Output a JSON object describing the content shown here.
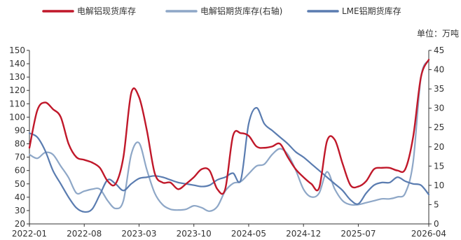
{
  "chart_data": {
    "type": "line",
    "unit": "单位：万吨",
    "legend_placement": "top",
    "grid": false,
    "x_ticks": [
      "2022-01",
      "2022-08",
      "2023-03",
      "2023-10",
      "2024-05",
      "2024-12",
      "2025-07",
      "2026-04"
    ],
    "x_range": [
      "2022-01",
      "2026-04"
    ],
    "y_left": {
      "range": [
        20,
        150
      ],
      "ticks": [
        20,
        30,
        40,
        50,
        60,
        70,
        80,
        90,
        100,
        110,
        120,
        130,
        140,
        150
      ]
    },
    "y_right": {
      "range": [
        0,
        45
      ],
      "ticks": [
        0,
        5,
        10,
        15,
        20,
        25,
        30,
        35,
        40,
        45
      ]
    },
    "series": [
      {
        "name": "电解铝现货库存",
        "color": "#c0182a",
        "axis": "left",
        "points": [
          [
            "2022-01",
            77
          ],
          [
            "2022-02",
            105
          ],
          [
            "2022-03",
            111
          ],
          [
            "2022-04",
            106
          ],
          [
            "2022-05",
            100
          ],
          [
            "2022-06",
            80
          ],
          [
            "2022-07",
            70
          ],
          [
            "2022-08",
            68
          ],
          [
            "2022-09",
            66
          ],
          [
            "2022-10",
            62
          ],
          [
            "2022-11",
            52
          ],
          [
            "2022-12",
            50
          ],
          [
            "2023-01",
            70
          ],
          [
            "2023-02",
            118
          ],
          [
            "2023-03",
            115
          ],
          [
            "2023-04",
            90
          ],
          [
            "2023-05",
            58
          ],
          [
            "2023-06",
            51
          ],
          [
            "2023-07",
            51
          ],
          [
            "2023-08",
            46
          ],
          [
            "2023-09",
            50
          ],
          [
            "2023-10",
            55
          ],
          [
            "2023-11",
            61
          ],
          [
            "2023-12",
            60
          ],
          [
            "2024-01",
            46
          ],
          [
            "2024-02",
            46
          ],
          [
            "2024-03",
            86
          ],
          [
            "2024-04",
            88
          ],
          [
            "2024-05",
            86
          ],
          [
            "2024-06",
            78
          ],
          [
            "2024-07",
            77
          ],
          [
            "2024-08",
            78
          ],
          [
            "2024-09",
            80
          ],
          [
            "2024-10",
            70
          ],
          [
            "2024-11",
            61
          ],
          [
            "2024-12",
            55
          ],
          [
            "2025-01",
            50
          ],
          [
            "2025-02",
            47
          ],
          [
            "2025-03",
            82
          ],
          [
            "2025-04",
            83
          ],
          [
            "2025-05",
            65
          ],
          [
            "2025-06",
            49
          ],
          [
            "2025-07",
            48
          ],
          [
            "2025-08",
            52
          ],
          [
            "2025-09",
            61
          ],
          [
            "2025-10",
            62
          ],
          [
            "2025-11",
            62
          ],
          [
            "2025-12",
            60
          ],
          [
            "2026-01",
            61
          ],
          [
            "2026-02",
            85
          ],
          [
            "2026-03",
            130
          ],
          [
            "2026-04",
            143
          ]
        ]
      },
      {
        "name": "电解铝期货库存(右轴)",
        "color": "#8ea7c7",
        "axis": "right",
        "points": [
          [
            "2022-01",
            18
          ],
          [
            "2022-02",
            17
          ],
          [
            "2022-03",
            18.5
          ],
          [
            "2022-04",
            18
          ],
          [
            "2022-05",
            15
          ],
          [
            "2022-06",
            12
          ],
          [
            "2022-07",
            8
          ],
          [
            "2022-08",
            8.5
          ],
          [
            "2022-09",
            9
          ],
          [
            "2022-10",
            9
          ],
          [
            "2022-11",
            6
          ],
          [
            "2022-12",
            4
          ],
          [
            "2023-01",
            6
          ],
          [
            "2023-02",
            18
          ],
          [
            "2023-03",
            21
          ],
          [
            "2023-04",
            14
          ],
          [
            "2023-05",
            8
          ],
          [
            "2023-06",
            5
          ],
          [
            "2023-07",
            3.8
          ],
          [
            "2023-08",
            3.6
          ],
          [
            "2023-09",
            3.8
          ],
          [
            "2023-10",
            4.7
          ],
          [
            "2023-11",
            4.2
          ],
          [
            "2023-12",
            3.3
          ],
          [
            "2024-01",
            4.5
          ],
          [
            "2024-02",
            8.5
          ],
          [
            "2024-03",
            10.5
          ],
          [
            "2024-04",
            11
          ],
          [
            "2024-05",
            13
          ],
          [
            "2024-06",
            15
          ],
          [
            "2024-07",
            15.5
          ],
          [
            "2024-08",
            18
          ],
          [
            "2024-09",
            19.5
          ],
          [
            "2024-10",
            18
          ],
          [
            "2024-11",
            14
          ],
          [
            "2024-12",
            9
          ],
          [
            "2025-01",
            7
          ],
          [
            "2025-02",
            8
          ],
          [
            "2025-03",
            13.5
          ],
          [
            "2025-04",
            9
          ],
          [
            "2025-05",
            6
          ],
          [
            "2025-06",
            5
          ],
          [
            "2025-07",
            5
          ],
          [
            "2025-08",
            5.5
          ],
          [
            "2025-09",
            6
          ],
          [
            "2025-10",
            6.5
          ],
          [
            "2025-11",
            6.5
          ],
          [
            "2025-12",
            7
          ],
          [
            "2026-01",
            8
          ],
          [
            "2026-02",
            16
          ],
          [
            "2026-03",
            38
          ],
          [
            "2026-04",
            42.5
          ]
        ]
      },
      {
        "name": "LME铝期货库存",
        "color": "#5a7cb0",
        "axis": "left",
        "points": [
          [
            "2022-01",
            88
          ],
          [
            "2022-02",
            85
          ],
          [
            "2022-03",
            75
          ],
          [
            "2022-04",
            60
          ],
          [
            "2022-05",
            50
          ],
          [
            "2022-06",
            40
          ],
          [
            "2022-07",
            32
          ],
          [
            "2022-08",
            29
          ],
          [
            "2022-09",
            31
          ],
          [
            "2022-10",
            42
          ],
          [
            "2022-11",
            53
          ],
          [
            "2022-12",
            50
          ],
          [
            "2023-01",
            45
          ],
          [
            "2023-02",
            50
          ],
          [
            "2023-03",
            54
          ],
          [
            "2023-04",
            55
          ],
          [
            "2023-05",
            56
          ],
          [
            "2023-06",
            55
          ],
          [
            "2023-07",
            53
          ],
          [
            "2023-08",
            51
          ],
          [
            "2023-09",
            50
          ],
          [
            "2023-10",
            49
          ],
          [
            "2023-11",
            48
          ],
          [
            "2023-12",
            49
          ],
          [
            "2024-01",
            53
          ],
          [
            "2024-02",
            55
          ],
          [
            "2024-03",
            58
          ],
          [
            "2024-04",
            53
          ],
          [
            "2024-05",
            95
          ],
          [
            "2024-06",
            107
          ],
          [
            "2024-07",
            95
          ],
          [
            "2024-08",
            90
          ],
          [
            "2024-09",
            85
          ],
          [
            "2024-10",
            80
          ],
          [
            "2024-11",
            74
          ],
          [
            "2024-12",
            70
          ],
          [
            "2025-01",
            65
          ],
          [
            "2025-02",
            60
          ],
          [
            "2025-03",
            55
          ],
          [
            "2025-04",
            50
          ],
          [
            "2025-05",
            45
          ],
          [
            "2025-06",
            38
          ],
          [
            "2025-07",
            35
          ],
          [
            "2025-08",
            43
          ],
          [
            "2025-09",
            49
          ],
          [
            "2025-10",
            51
          ],
          [
            "2025-11",
            51
          ],
          [
            "2025-12",
            55
          ],
          [
            "2026-01",
            52
          ],
          [
            "2026-02",
            50
          ],
          [
            "2026-03",
            49
          ],
          [
            "2026-04",
            42
          ]
        ]
      }
    ]
  }
}
